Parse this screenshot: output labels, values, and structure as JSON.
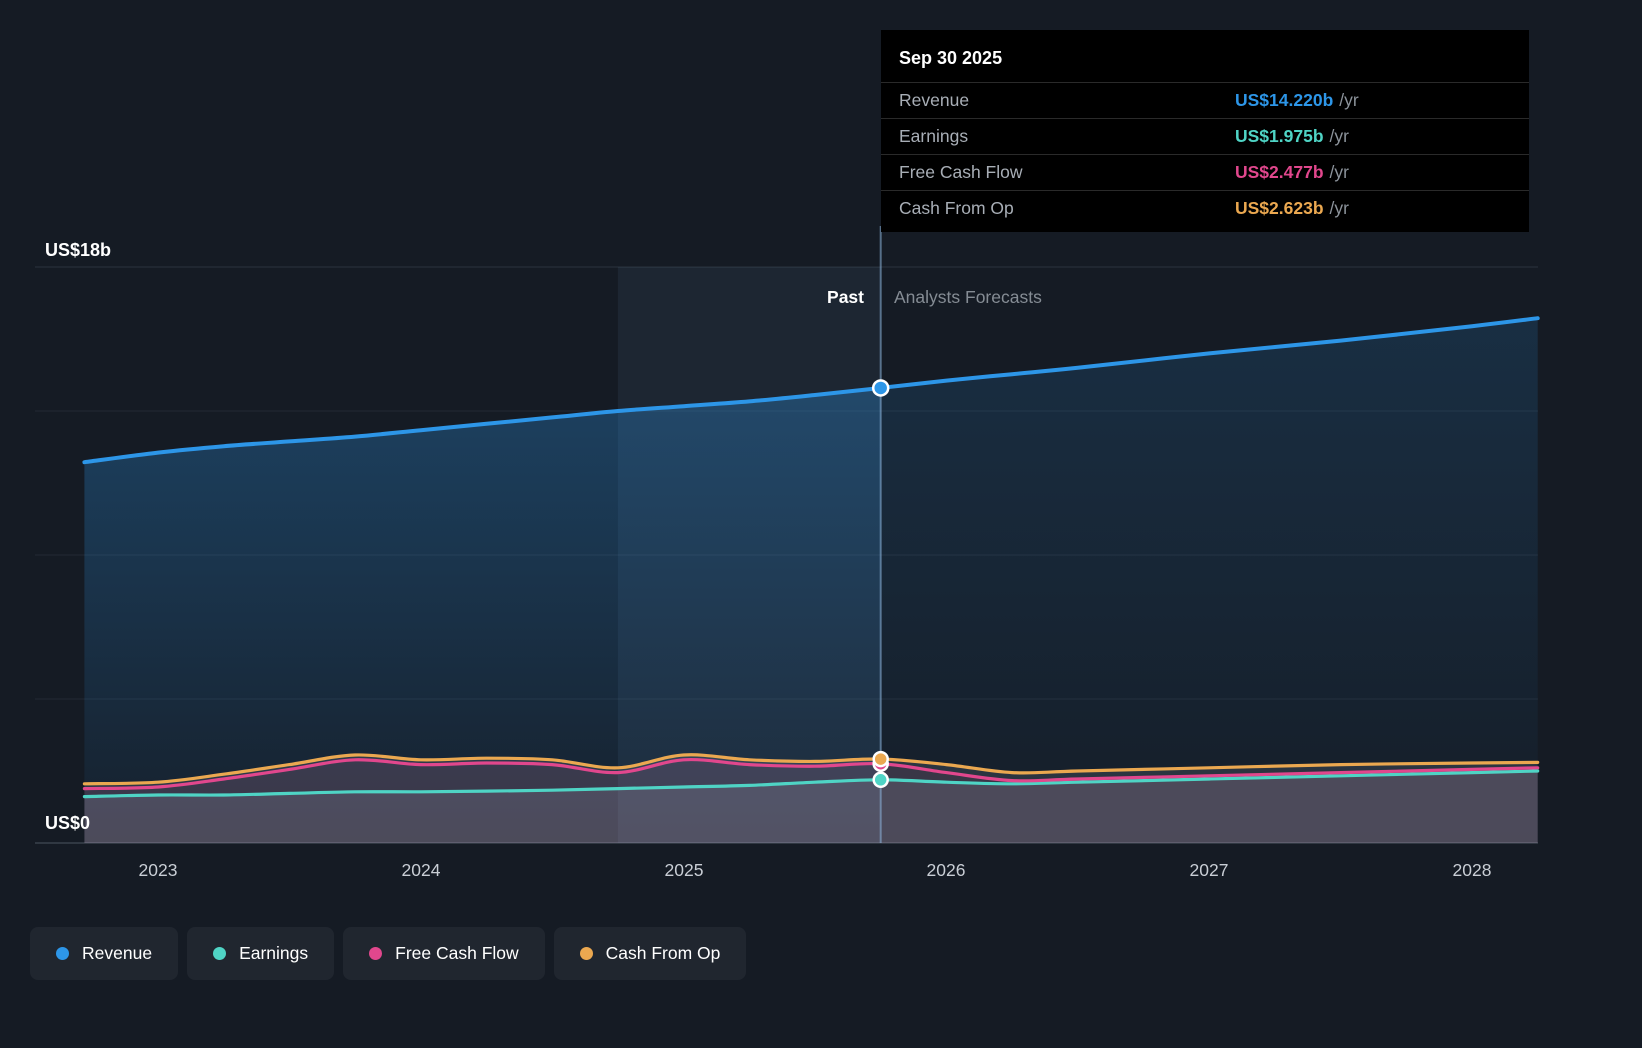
{
  "colors": {
    "background": "#151B24",
    "revenue": "#2D96E8",
    "earnings": "#4FD4C5",
    "free_cash_flow": "#E1478D",
    "cash_from_op": "#EBA850",
    "grid": "#232A34",
    "divider": "#8CB4DC"
  },
  "tooltip": {
    "date": "Sep 30 2025",
    "rows": [
      {
        "label": "Revenue",
        "value": "US$14.220b",
        "suffix": "/yr",
        "color": "#2D96E8"
      },
      {
        "label": "Earnings",
        "value": "US$1.975b",
        "suffix": "/yr",
        "color": "#4FD4C5"
      },
      {
        "label": "Free Cash Flow",
        "value": "US$2.477b",
        "suffix": "/yr",
        "color": "#E1478D"
      },
      {
        "label": "Cash From Op",
        "value": "US$2.623b",
        "suffix": "/yr",
        "color": "#EBA850"
      }
    ]
  },
  "axis": {
    "y_top_label": "US$18b",
    "y_bottom_label": "US$0",
    "x_ticks": [
      "2023",
      "2024",
      "2025",
      "2026",
      "2027",
      "2028"
    ]
  },
  "labels": {
    "past": "Past",
    "forecast": "Analysts Forecasts"
  },
  "legend": [
    {
      "label": "Revenue",
      "color": "#2D96E8"
    },
    {
      "label": "Earnings",
      "color": "#4FD4C5"
    },
    {
      "label": "Free Cash Flow",
      "color": "#E1478D"
    },
    {
      "label": "Cash From Op",
      "color": "#EBA850"
    }
  ],
  "chart_data": {
    "type": "area",
    "title": "Earnings and Revenue Growth Forecast",
    "unit": "US$ billions per year",
    "ylim": [
      0,
      18
    ],
    "xlim": [
      2022.53,
      2028.25
    ],
    "grid": true,
    "legend_position": "bottom-left",
    "divider_x": 2025.75,
    "divider_date": "Sep 30 2025",
    "highlight_band": [
      2024.75,
      2025.75
    ],
    "y_gridlines": [
      0,
      4.5,
      9,
      13.5,
      18
    ],
    "x_tick_values": [
      2023,
      2024,
      2025,
      2026,
      2027,
      2028
    ],
    "x": [
      2022.72,
      2023.0,
      2023.25,
      2023.5,
      2023.75,
      2024.0,
      2024.25,
      2024.5,
      2024.75,
      2025.0,
      2025.25,
      2025.5,
      2025.75,
      2026.0,
      2026.25,
      2026.5,
      2027.0,
      2027.5,
      2028.0,
      2028.25
    ],
    "series": [
      {
        "name": "Revenue",
        "color": "#2D96E8",
        "values": [
          11.9,
          12.2,
          12.4,
          12.55,
          12.7,
          12.9,
          13.1,
          13.3,
          13.5,
          13.65,
          13.8,
          14.0,
          14.22,
          14.45,
          14.65,
          14.85,
          15.3,
          15.7,
          16.15,
          16.4
        ]
      },
      {
        "name": "Earnings",
        "color": "#4FD4C5",
        "values": [
          1.45,
          1.5,
          1.5,
          1.55,
          1.6,
          1.6,
          1.62,
          1.65,
          1.7,
          1.75,
          1.8,
          1.9,
          1.975,
          1.9,
          1.85,
          1.9,
          2.0,
          2.1,
          2.2,
          2.25
        ]
      },
      {
        "name": "Free Cash Flow",
        "color": "#E1478D",
        "values": [
          1.7,
          1.75,
          2.0,
          2.3,
          2.6,
          2.45,
          2.5,
          2.45,
          2.2,
          2.6,
          2.45,
          2.4,
          2.477,
          2.2,
          1.95,
          2.0,
          2.1,
          2.2,
          2.3,
          2.35
        ]
      },
      {
        "name": "Cash From Op",
        "color": "#EBA850",
        "values": [
          1.85,
          1.9,
          2.15,
          2.45,
          2.75,
          2.6,
          2.65,
          2.6,
          2.35,
          2.75,
          2.6,
          2.55,
          2.623,
          2.45,
          2.2,
          2.25,
          2.35,
          2.45,
          2.5,
          2.52
        ]
      }
    ],
    "values_at_divider": {
      "Revenue": 14.22,
      "Earnings": 1.975,
      "Free Cash Flow": 2.477,
      "Cash From Op": 2.623
    }
  }
}
